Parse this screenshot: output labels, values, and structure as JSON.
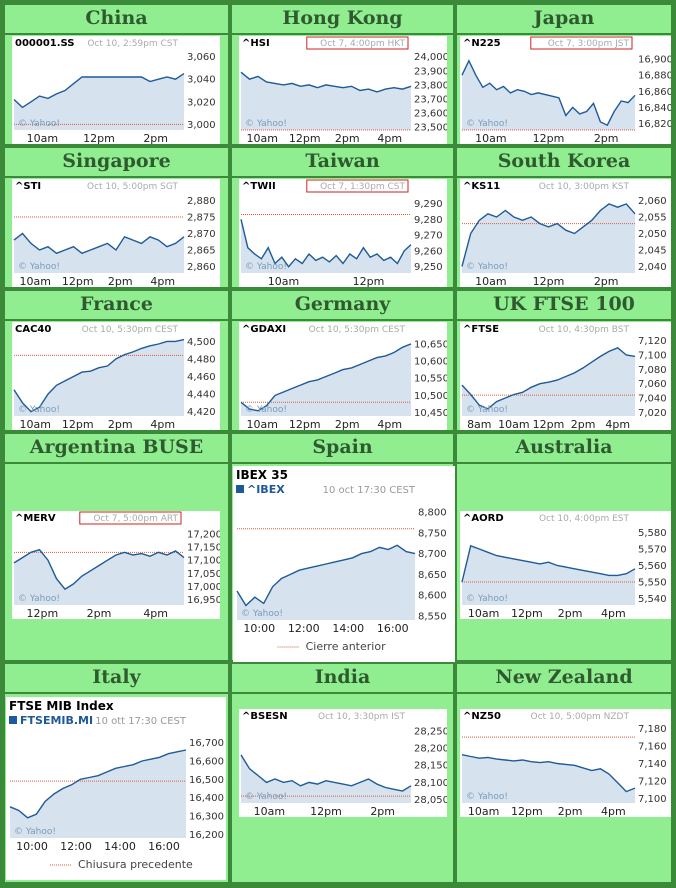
{
  "chart_data": [
    {
      "type": "area",
      "region": "China",
      "symbol": "000001.SS",
      "timestamp": "Oct 10, 2:59pm CST",
      "xticks": [
        "10am",
        "12pm",
        "2pm"
      ],
      "yticks": [
        3060,
        3040,
        3020,
        3000
      ],
      "ylim": [
        2995,
        3065
      ],
      "prev_close": 3000,
      "watermark": "© Yahoo!",
      "x": [
        0,
        0.05,
        0.1,
        0.15,
        0.2,
        0.25,
        0.3,
        0.35,
        0.4,
        0.45,
        0.5,
        0.55,
        0.6,
        0.65,
        0.7,
        0.75,
        0.8,
        0.85,
        0.9,
        0.95,
        1
      ],
      "y": [
        3022,
        3015,
        3020,
        3025,
        3023,
        3027,
        3030,
        3036,
        3042,
        3042,
        3042,
        3042,
        3042,
        3042,
        3042,
        3042,
        3038,
        3040,
        3042,
        3040,
        3045
      ]
    },
    {
      "type": "area",
      "region": "Hong Kong",
      "symbol": "^HSI",
      "timestamp": "Oct 7, 4:00pm HKT",
      "timestamp_boxed": true,
      "xticks": [
        "10am",
        "12pm",
        "2pm",
        "4pm"
      ],
      "yticks": [
        24000,
        23900,
        23800,
        23700,
        23600,
        23500
      ],
      "ylim": [
        23480,
        24040
      ],
      "prev_close": 23480,
      "watermark": "© Yahoo!",
      "x": [
        0,
        0.05,
        0.1,
        0.15,
        0.2,
        0.25,
        0.3,
        0.35,
        0.4,
        0.45,
        0.5,
        0.55,
        0.6,
        0.65,
        0.7,
        0.75,
        0.8,
        0.85,
        0.9,
        0.95,
        1
      ],
      "y": [
        23890,
        23840,
        23860,
        23820,
        23810,
        23800,
        23810,
        23790,
        23800,
        23780,
        23800,
        23790,
        23780,
        23790,
        23760,
        23770,
        23750,
        23770,
        23780,
        23770,
        23790
      ]
    },
    {
      "type": "area",
      "region": "Japan",
      "symbol": "^N225",
      "timestamp": "Oct 7, 3:00pm JST",
      "timestamp_boxed": true,
      "xticks": [
        "10am",
        "12pm",
        "2pm"
      ],
      "yticks": [
        16900,
        16880,
        16860,
        16840,
        16820
      ],
      "ylim": [
        16812,
        16910
      ],
      "prev_close": 16812,
      "watermark": "© Yahoo!",
      "x": [
        0,
        0.04,
        0.08,
        0.12,
        0.16,
        0.2,
        0.24,
        0.28,
        0.32,
        0.36,
        0.4,
        0.44,
        0.5,
        0.56,
        0.6,
        0.64,
        0.68,
        0.72,
        0.76,
        0.8,
        0.84,
        0.88,
        0.92,
        0.96,
        1
      ],
      "y": [
        16880,
        16898,
        16880,
        16865,
        16870,
        16862,
        16866,
        16858,
        16862,
        16860,
        16856,
        16858,
        16855,
        16852,
        16830,
        16840,
        16832,
        16835,
        16845,
        16822,
        16818,
        16835,
        16848,
        16846,
        16855
      ]
    },
    {
      "type": "area",
      "region": "Singapore",
      "symbol": "^STI",
      "timestamp": "Oct 10, 5:00pm SGT",
      "xticks": [
        "10am",
        "12pm",
        "2pm",
        "4pm"
      ],
      "yticks": [
        2880,
        2875,
        2870,
        2865,
        2860
      ],
      "ylim": [
        2858,
        2882
      ],
      "prev_close": 2875,
      "watermark": "© Yahoo!",
      "x": [
        0,
        0.05,
        0.1,
        0.15,
        0.2,
        0.25,
        0.3,
        0.35,
        0.4,
        0.45,
        0.5,
        0.55,
        0.6,
        0.65,
        0.7,
        0.75,
        0.8,
        0.85,
        0.9,
        0.95,
        1
      ],
      "y": [
        2868,
        2870,
        2867,
        2865,
        2866,
        2864,
        2865,
        2866,
        2864,
        2865,
        2866,
        2867,
        2865,
        2869,
        2868,
        2867,
        2869,
        2868,
        2866,
        2867,
        2869
      ]
    },
    {
      "type": "area",
      "region": "Taiwan",
      "symbol": "^TWII",
      "timestamp": "Oct 7, 1:30pm CST",
      "timestamp_boxed": true,
      "xticks": [
        "10am",
        "12pm"
      ],
      "yticks": [
        9290,
        9280,
        9270,
        9260,
        9250
      ],
      "ylim": [
        9246,
        9296
      ],
      "prev_close": 9283,
      "watermark": "© Yahoo!",
      "x": [
        0,
        0.04,
        0.08,
        0.12,
        0.16,
        0.2,
        0.24,
        0.28,
        0.32,
        0.36,
        0.4,
        0.44,
        0.48,
        0.52,
        0.56,
        0.6,
        0.64,
        0.68,
        0.72,
        0.76,
        0.8,
        0.84,
        0.88,
        0.92,
        0.96,
        1
      ],
      "y": [
        9280,
        9262,
        9258,
        9255,
        9262,
        9252,
        9256,
        9250,
        9255,
        9252,
        9258,
        9254,
        9256,
        9253,
        9257,
        9252,
        9258,
        9255,
        9262,
        9256,
        9258,
        9254,
        9256,
        9252,
        9260,
        9264
      ]
    },
    {
      "type": "area",
      "region": "South Korea",
      "symbol": "^KS11",
      "timestamp": "Oct 10, 3:00pm KST",
      "xticks": [
        "10am",
        "12pm",
        "2pm"
      ],
      "yticks": [
        2060,
        2055,
        2050,
        2045,
        2040
      ],
      "ylim": [
        2038,
        2062
      ],
      "prev_close": 2053,
      "watermark": "© Yahoo!",
      "x": [
        0,
        0.05,
        0.1,
        0.15,
        0.2,
        0.25,
        0.3,
        0.35,
        0.4,
        0.45,
        0.5,
        0.55,
        0.6,
        0.65,
        0.7,
        0.75,
        0.8,
        0.85,
        0.9,
        0.95,
        1
      ],
      "y": [
        2040,
        2050,
        2054,
        2056,
        2055,
        2057,
        2055,
        2054,
        2055,
        2053,
        2052,
        2053,
        2051,
        2050,
        2052,
        2054,
        2057,
        2059,
        2058,
        2059,
        2056
      ]
    },
    {
      "type": "area",
      "region": "France",
      "symbol": "CAC40",
      "timestamp": "Oct 10, 5:30pm CEST",
      "xticks": [
        "10am",
        "12pm",
        "2pm",
        "4pm"
      ],
      "yticks": [
        4500,
        4480,
        4460,
        4440,
        4420
      ],
      "ylim": [
        4415,
        4505
      ],
      "prev_close": 4484,
      "watermark": "© Yahoo!",
      "x": [
        0,
        0.05,
        0.1,
        0.15,
        0.2,
        0.25,
        0.3,
        0.35,
        0.4,
        0.45,
        0.5,
        0.55,
        0.6,
        0.65,
        0.7,
        0.75,
        0.8,
        0.85,
        0.9,
        0.95,
        1
      ],
      "y": [
        4445,
        4430,
        4420,
        4425,
        4440,
        4450,
        4455,
        4460,
        4465,
        4466,
        4470,
        4472,
        4480,
        4485,
        4488,
        4492,
        4495,
        4497,
        4500,
        4500,
        4502
      ]
    },
    {
      "type": "area",
      "region": "Germany",
      "symbol": "^GDAXI",
      "timestamp": "Oct 10, 5:30pm CEST",
      "xticks": [
        "10am",
        "12pm",
        "2pm",
        "4pm"
      ],
      "yticks": [
        10650,
        10600,
        10550,
        10500,
        10450
      ],
      "ylim": [
        10440,
        10670
      ],
      "prev_close": 10480,
      "watermark": "© Yahoo!",
      "x": [
        0,
        0.05,
        0.1,
        0.15,
        0.2,
        0.25,
        0.3,
        0.35,
        0.4,
        0.45,
        0.5,
        0.55,
        0.6,
        0.65,
        0.7,
        0.75,
        0.8,
        0.85,
        0.9,
        0.95,
        1
      ],
      "y": [
        10480,
        10460,
        10455,
        10470,
        10500,
        10510,
        10520,
        10530,
        10540,
        10545,
        10555,
        10565,
        10575,
        10580,
        10590,
        10600,
        10610,
        10615,
        10625,
        10640,
        10650
      ]
    },
    {
      "type": "area",
      "region": "UK FTSE 100",
      "symbol": "^FTSE",
      "timestamp": "Oct 10, 4:30pm BST",
      "xticks": [
        "8am",
        "10am",
        "12pm",
        "2pm",
        "4pm"
      ],
      "yticks": [
        7120,
        7100,
        7080,
        7060,
        7040,
        7020
      ],
      "ylim": [
        7015,
        7125
      ],
      "prev_close": 7044,
      "watermark": "© Yahoo!",
      "x": [
        0,
        0.05,
        0.1,
        0.15,
        0.2,
        0.25,
        0.3,
        0.35,
        0.4,
        0.45,
        0.5,
        0.55,
        0.6,
        0.65,
        0.7,
        0.75,
        0.8,
        0.85,
        0.9,
        0.95,
        1
      ],
      "y": [
        7058,
        7045,
        7030,
        7025,
        7035,
        7040,
        7045,
        7048,
        7055,
        7060,
        7062,
        7065,
        7070,
        7075,
        7082,
        7090,
        7098,
        7105,
        7110,
        7100,
        7098
      ]
    },
    {
      "type": "area",
      "region": "Argentina BUSE",
      "symbol": "^MERV",
      "timestamp": "Oct 7, 5:00pm ART",
      "timestamp_boxed": true,
      "xticks": [
        "12pm",
        "2pm",
        "4pm"
      ],
      "yticks": [
        17200,
        17150,
        17100,
        17050,
        17000,
        16950
      ],
      "ylim": [
        16930,
        17230
      ],
      "prev_close": 17130,
      "watermark": "© Yahoo!",
      "x": [
        0,
        0.05,
        0.1,
        0.15,
        0.2,
        0.25,
        0.3,
        0.35,
        0.4,
        0.45,
        0.5,
        0.55,
        0.6,
        0.65,
        0.7,
        0.75,
        0.8,
        0.85,
        0.9,
        0.95,
        1
      ],
      "y": [
        17090,
        17110,
        17130,
        17140,
        17100,
        17030,
        16990,
        17010,
        17040,
        17060,
        17080,
        17100,
        17120,
        17130,
        17120,
        17125,
        17115,
        17130,
        17120,
        17135,
        17110
      ]
    },
    {
      "type": "area",
      "region": "Spain",
      "title": "IBEX 35",
      "symbol": "^IBEX",
      "timestamp": "10 oct 17:30 CEST",
      "xticks": [
        "10:00",
        "12:00",
        "14:00",
        "16:00"
      ],
      "yticks": [
        8800,
        8750,
        8700,
        8650,
        8600,
        8550
      ],
      "ylim": [
        8540,
        8810
      ],
      "prev_close": 8760,
      "legend": "Cierre anterior",
      "watermark": "© Yahoo!",
      "x": [
        0,
        0.05,
        0.1,
        0.15,
        0.2,
        0.25,
        0.3,
        0.35,
        0.4,
        0.45,
        0.5,
        0.55,
        0.6,
        0.65,
        0.7,
        0.75,
        0.8,
        0.85,
        0.9,
        0.95,
        1
      ],
      "y": [
        8610,
        8575,
        8595,
        8580,
        8620,
        8640,
        8650,
        8660,
        8665,
        8670,
        8675,
        8680,
        8685,
        8690,
        8700,
        8705,
        8715,
        8710,
        8720,
        8705,
        8700
      ]
    },
    {
      "type": "area",
      "region": "Australia",
      "symbol": "^AORD",
      "timestamp": "Oct 10, 4:00pm EST",
      "xticks": [
        "10am",
        "12pm",
        "2pm",
        "4pm"
      ],
      "yticks": [
        5580,
        5570,
        5560,
        5550,
        5540
      ],
      "ylim": [
        5536,
        5584
      ],
      "prev_close": 5550,
      "watermark": "© Yahoo!",
      "x": [
        0,
        0.05,
        0.1,
        0.15,
        0.2,
        0.25,
        0.3,
        0.35,
        0.4,
        0.45,
        0.5,
        0.55,
        0.6,
        0.65,
        0.7,
        0.75,
        0.8,
        0.85,
        0.9,
        0.95,
        1
      ],
      "y": [
        5550,
        5572,
        5570,
        5568,
        5566,
        5565,
        5564,
        5563,
        5562,
        5561,
        5562,
        5560,
        5559,
        5558,
        5557,
        5556,
        5555,
        5554,
        5554,
        5555,
        5558
      ]
    },
    {
      "type": "area",
      "region": "Italy",
      "title": "FTSE MIB Index",
      "symbol": "FTSEMIB.MI",
      "timestamp": "10 ott 17:30 CEST",
      "xticks": [
        "10:00",
        "12:00",
        "14:00",
        "16:00"
      ],
      "yticks": [
        16700,
        16600,
        16500,
        16400,
        16300,
        16200
      ],
      "ylim": [
        16180,
        16720
      ],
      "prev_close": 16490,
      "legend": "Chiusura precedente",
      "watermark": "© Yahoo!",
      "x": [
        0,
        0.05,
        0.1,
        0.15,
        0.2,
        0.25,
        0.3,
        0.35,
        0.4,
        0.45,
        0.5,
        0.55,
        0.6,
        0.65,
        0.7,
        0.75,
        0.8,
        0.85,
        0.9,
        0.95,
        1
      ],
      "y": [
        16350,
        16330,
        16290,
        16310,
        16380,
        16420,
        16450,
        16470,
        16500,
        16510,
        16520,
        16540,
        16560,
        16570,
        16580,
        16600,
        16610,
        16620,
        16640,
        16650,
        16660
      ]
    },
    {
      "type": "area",
      "region": "India",
      "symbol": "^BSESN",
      "timestamp": "Oct 10, 3:30pm IST",
      "xticks": [
        "10am",
        "12pm",
        "2pm"
      ],
      "yticks": [
        28250,
        28200,
        28150,
        28100,
        28050
      ],
      "ylim": [
        28040,
        28270
      ],
      "prev_close": 28060,
      "watermark": "© Yahoo!",
      "x": [
        0,
        0.05,
        0.1,
        0.15,
        0.2,
        0.25,
        0.3,
        0.35,
        0.4,
        0.45,
        0.5,
        0.55,
        0.6,
        0.65,
        0.7,
        0.75,
        0.8,
        0.85,
        0.9,
        0.95,
        1
      ],
      "y": [
        28180,
        28140,
        28120,
        28100,
        28110,
        28100,
        28105,
        28090,
        28100,
        28095,
        28105,
        28100,
        28095,
        28090,
        28100,
        28110,
        28095,
        28085,
        28080,
        28075,
        28090
      ]
    },
    {
      "type": "area",
      "region": "New Zealand",
      "symbol": "^NZ50",
      "timestamp": "Oct 10, 5:00pm NZDT",
      "xticks": [
        "10am",
        "12pm",
        "2pm",
        "4pm"
      ],
      "yticks": [
        7180,
        7160,
        7140,
        7120,
        7100
      ],
      "ylim": [
        7095,
        7185
      ],
      "prev_close": 7170,
      "watermark": "© Yahoo!",
      "x": [
        0,
        0.05,
        0.1,
        0.15,
        0.2,
        0.25,
        0.3,
        0.35,
        0.4,
        0.45,
        0.5,
        0.55,
        0.6,
        0.65,
        0.7,
        0.75,
        0.8,
        0.85,
        0.9,
        0.95,
        1
      ],
      "y": [
        7150,
        7148,
        7146,
        7147,
        7145,
        7144,
        7143,
        7144,
        7142,
        7141,
        7142,
        7140,
        7139,
        7138,
        7135,
        7132,
        7134,
        7128,
        7118,
        7108,
        7112
      ]
    }
  ]
}
